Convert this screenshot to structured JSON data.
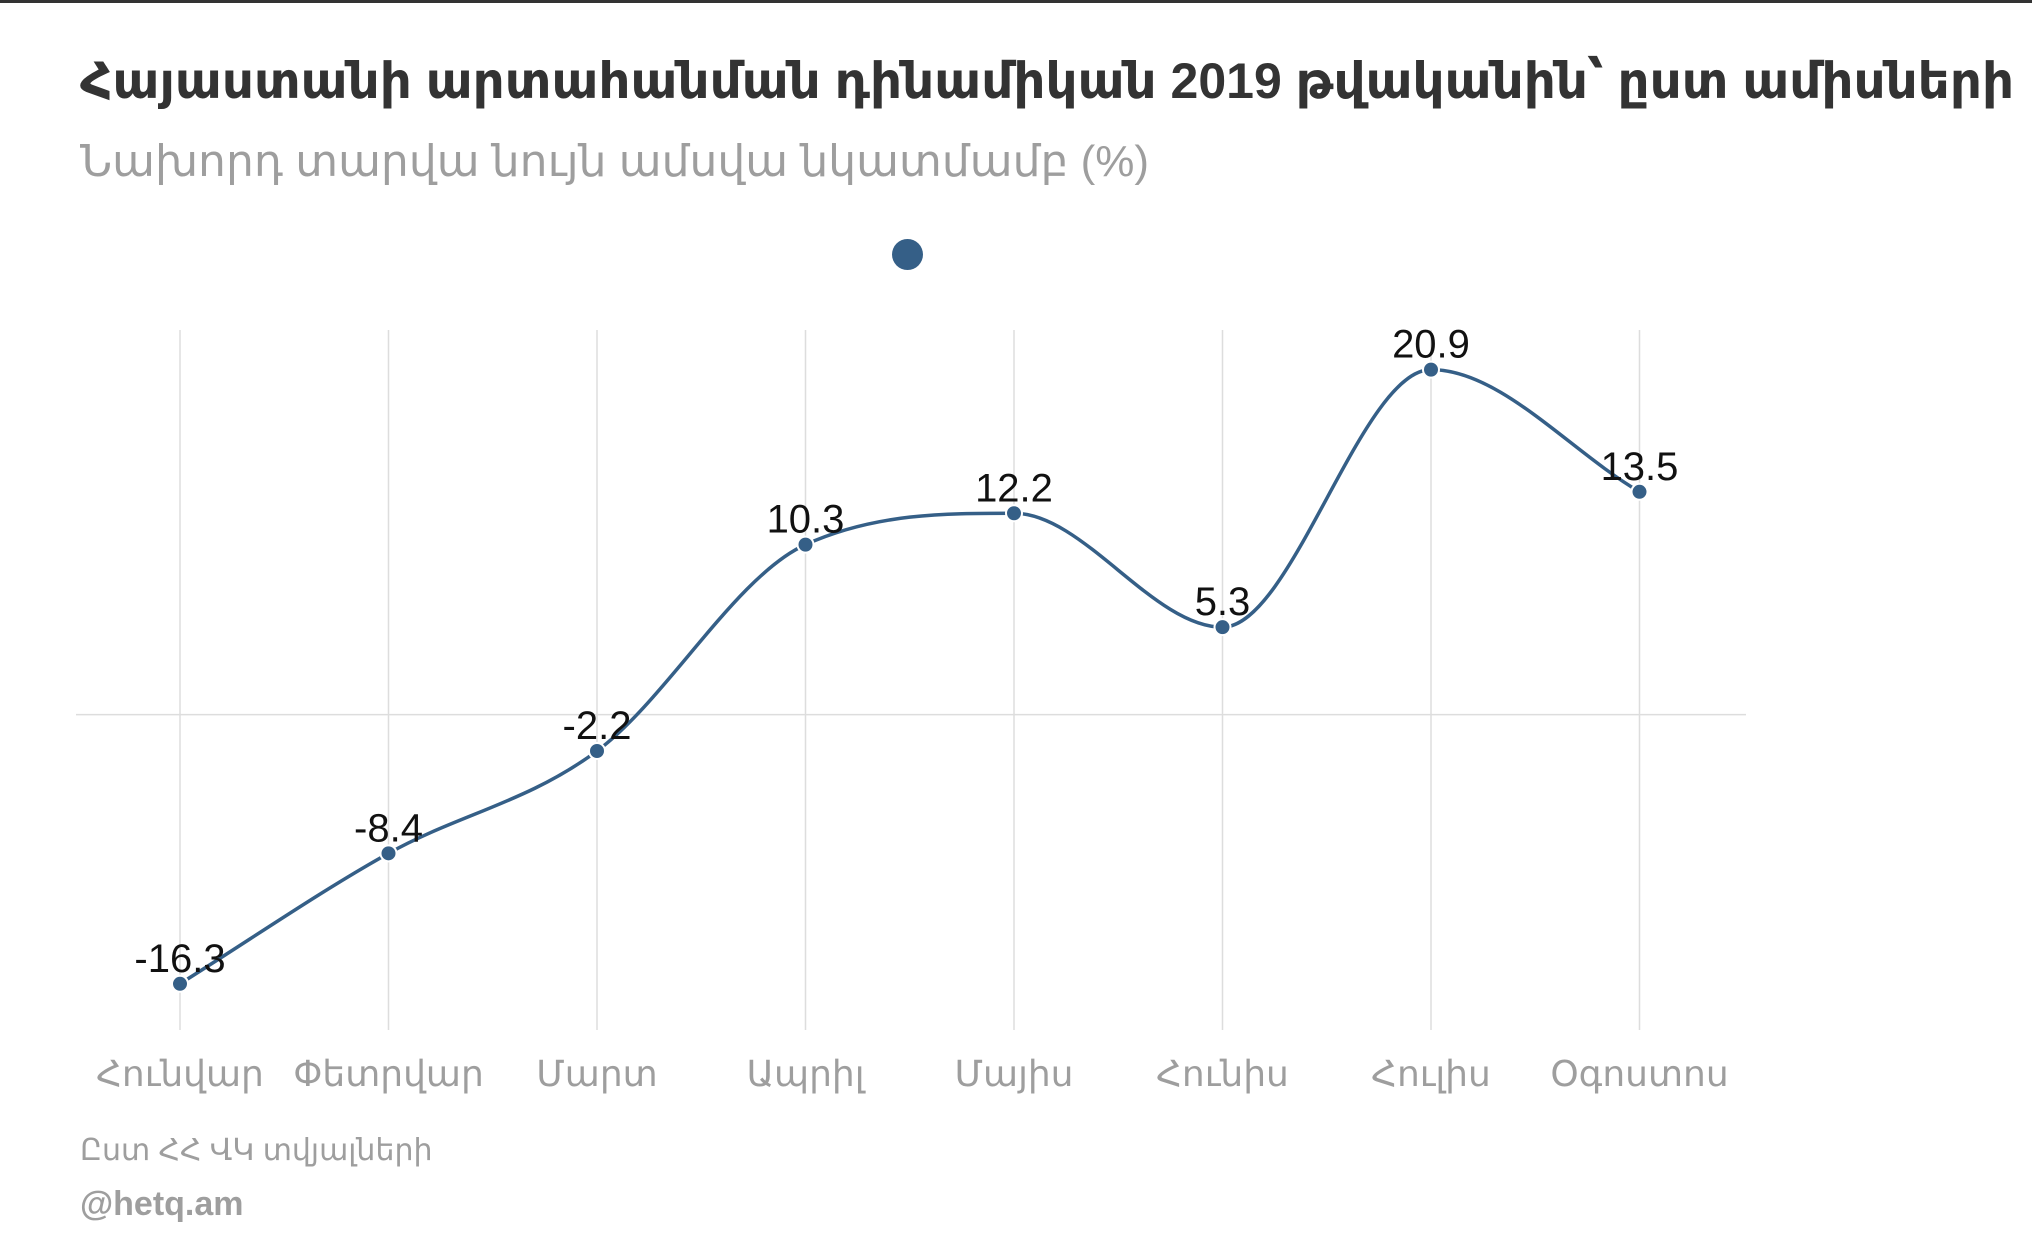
{
  "header": {
    "title": "Հայաստանի արտահանման դինամիկան 2019 թվականին՝  ըստ ամիսների",
    "subtitle": "Նախորդ տարվա նույն ամսվա նկատմամբ (%)"
  },
  "footer": {
    "source": "Ըստ ՀՀ ՎԿ տվյալների",
    "credit": "@hetq.am"
  },
  "colors": {
    "series": "#355f87",
    "grid": "#dddddd",
    "axis_label": "#9e9e9e",
    "data_label": "#111111"
  },
  "chart_data": {
    "type": "line",
    "title": "Հայաստանի արտահանման դինամիկան 2019 թվականին՝  ըստ ամիսների",
    "subtitle": "Նախորդ տարվա նույն ամսվա նկատմամբ (%)",
    "xlabel": "",
    "ylabel": "",
    "categories": [
      "Հունվար",
      "Փետրվար",
      "Մարտ",
      "Ապրիլ",
      "Մայիս",
      "Հունիս",
      "Հուլիս",
      "Օգոստոս"
    ],
    "series": [
      {
        "values": [
          -16.3,
          -8.4,
          -2.2,
          10.3,
          12.2,
          5.3,
          20.9,
          13.5
        ]
      }
    ],
    "ylim": [
      -19.1,
      23.3
    ],
    "grid": true,
    "legend": "top-center",
    "zero_line": true,
    "curve": "smooth",
    "data_labels": true
  }
}
